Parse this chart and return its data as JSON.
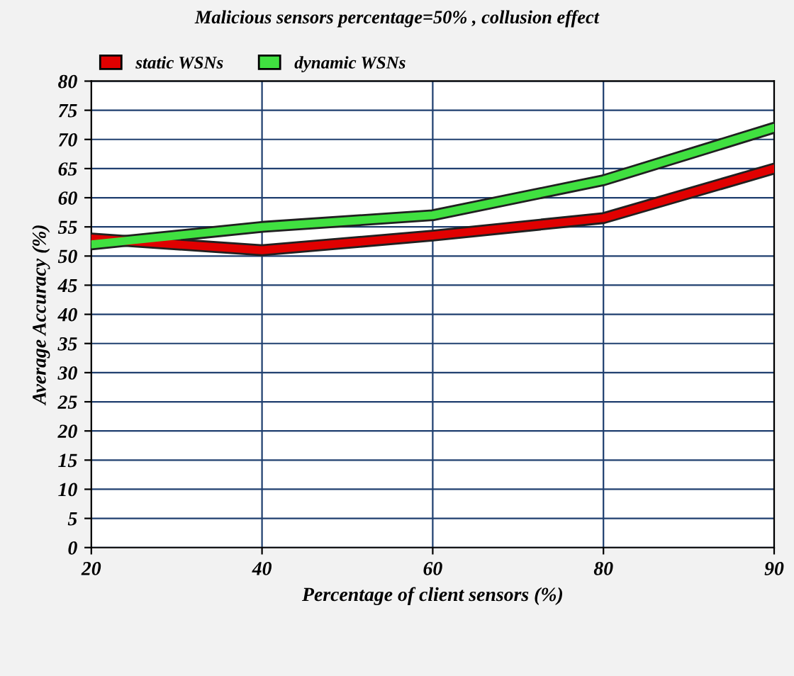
{
  "chart_data": {
    "type": "line",
    "title": "Malicious sensors percentage=50% , collusion effect",
    "xlabel": "Percentage of client sensors (%)",
    "ylabel": "Average Accuracy (%)",
    "categories": [
      "20",
      "40",
      "60",
      "80",
      "90"
    ],
    "series": [
      {
        "name": "static WSNs",
        "color": "#e00000",
        "values": [
          53,
          51,
          53.5,
          56.5,
          65
        ]
      },
      {
        "name": "dynamic WSNs",
        "color": "#40e040",
        "values": [
          52,
          55,
          57,
          63,
          72
        ]
      }
    ],
    "ylim": [
      0,
      80
    ],
    "yticks": [
      0,
      5,
      10,
      15,
      20,
      25,
      30,
      35,
      40,
      45,
      50,
      55,
      60,
      65,
      70,
      75,
      80
    ],
    "grid": true,
    "legend": "top left",
    "marker": "none",
    "line_style": "solid"
  }
}
